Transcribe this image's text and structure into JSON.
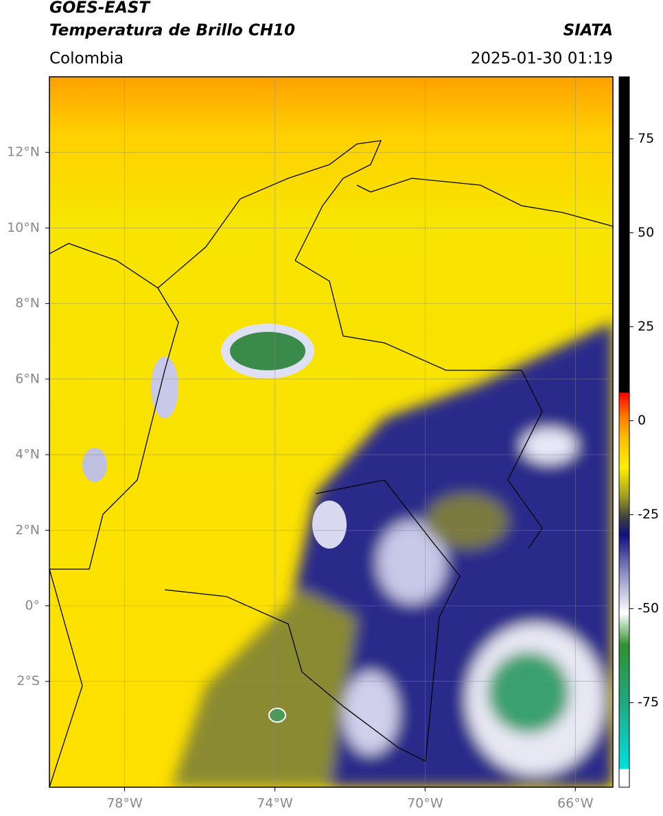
{
  "header": {
    "title": "GOES-EAST",
    "subtitle": "Temperatura de Brillo CH10",
    "source": "SIATA",
    "region": "Colombia",
    "timestamp": "2025-01-30 01:19"
  },
  "map": {
    "xlim": [
      -80,
      -65
    ],
    "ylim": [
      -4.8,
      14
    ],
    "xticks": [
      {
        "value": -78,
        "label": "78°W"
      },
      {
        "value": -74,
        "label": "74°W"
      },
      {
        "value": -70,
        "label": "70°W"
      },
      {
        "value": -66,
        "label": "66°W"
      }
    ],
    "yticks": [
      {
        "value": 12,
        "label": "12°N"
      },
      {
        "value": 10,
        "label": "10°N"
      },
      {
        "value": 8,
        "label": "8°N"
      },
      {
        "value": 6,
        "label": "6°N"
      },
      {
        "value": 4,
        "label": "4°N"
      },
      {
        "value": 2,
        "label": "2°N"
      },
      {
        "value": 0,
        "label": "0°"
      },
      {
        "value": -2,
        "label": "2°S"
      }
    ],
    "grid": true
  },
  "colorbar": {
    "lim": [
      -97.5,
      91.5
    ],
    "ticks": [
      75,
      50,
      25,
      0,
      -25,
      -50,
      -75
    ]
  }
}
